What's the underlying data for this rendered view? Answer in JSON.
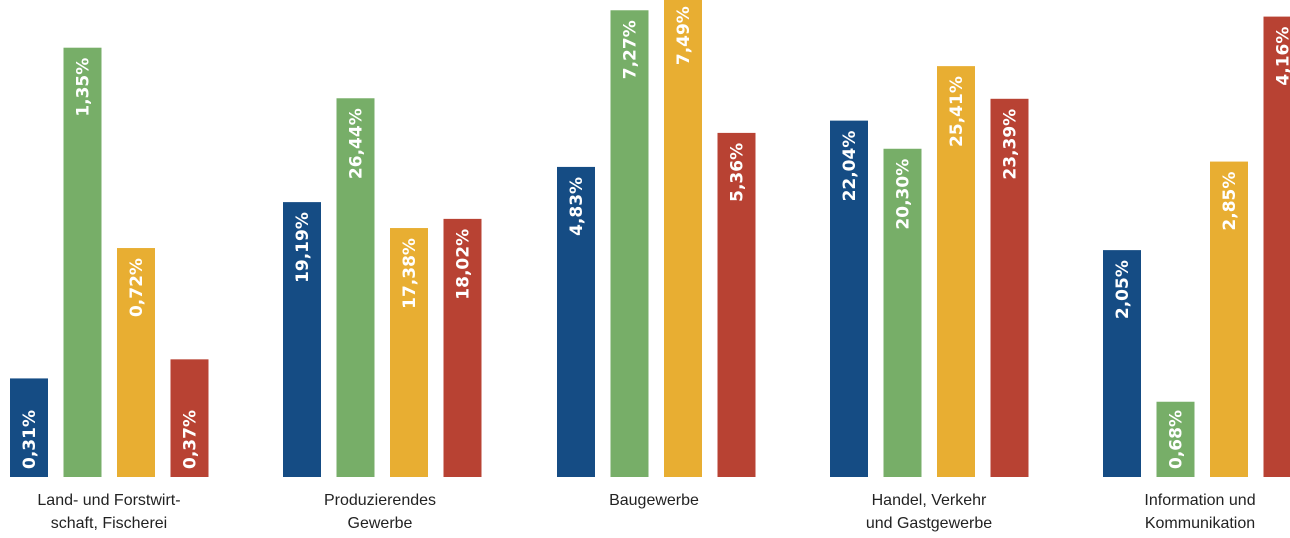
{
  "chart_data": {
    "type": "bar",
    "title": "",
    "xlabel": "",
    "ylabel": "",
    "categories": [
      [
        "Land- und Forstwirt-",
        "schaft, Fischerei"
      ],
      [
        "Produzierendes",
        "Gewerbe"
      ],
      [
        "Baugewerbe"
      ],
      [
        "Handel, Verkehr",
        "und Gastgewerbe"
      ],
      [
        "Information und",
        "Kommunikation"
      ]
    ],
    "series_colors": [
      "#154c84",
      "#77ae68",
      "#e8ae32",
      "#b84233"
    ],
    "groups": [
      {
        "values": [
          0.31,
          1.35,
          0.72,
          0.37
        ],
        "labels": [
          "0,31%",
          "1,35%",
          "0,72%",
          "0,37%"
        ],
        "scale_max": 1.5
      },
      {
        "values": [
          19.19,
          26.44,
          17.38,
          18.02
        ],
        "labels": [
          "19,19%",
          "26,44%",
          "17,38%",
          "18,02%"
        ],
        "scale_max": 33.3
      },
      {
        "values": [
          4.83,
          7.27,
          7.49,
          5.36
        ],
        "labels": [
          "4,83%",
          "7,27%",
          "7,49%",
          "5,36%"
        ],
        "scale_max": 7.43
      },
      {
        "values": [
          22.04,
          20.3,
          25.41,
          23.39
        ],
        "labels": [
          "22,04%",
          "20,30%",
          "25,41%",
          "23,39%"
        ],
        "scale_max": 29.5
      },
      {
        "values": [
          2.05,
          0.68,
          2.85,
          4.16
        ],
        "labels": [
          "2,05%",
          "0,68%",
          "2,85%",
          "4,16%"
        ],
        "scale_max": 4.31
      }
    ]
  }
}
